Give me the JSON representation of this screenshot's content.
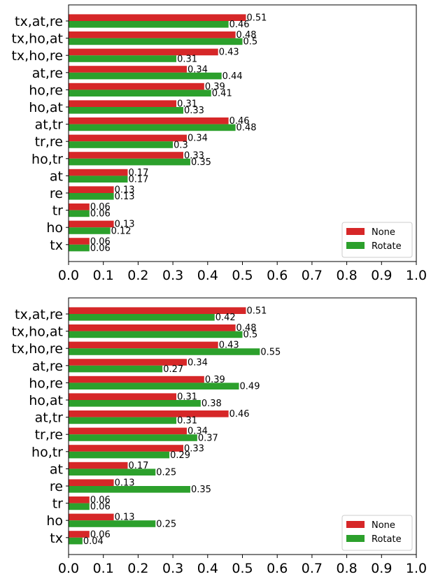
{
  "chart_data": [
    {
      "type": "bar",
      "orientation": "horizontal",
      "categories": [
        "tx,at,re",
        "tx,ho,at",
        "tx,ho,re",
        "at,re",
        "ho,re",
        "ho,at",
        "at,tr",
        "tr,re",
        "ho,tr",
        "at",
        "re",
        "tr",
        "ho",
        "tx"
      ],
      "series": [
        {
          "name": "None",
          "color": "#d62728",
          "values": [
            0.51,
            0.48,
            0.43,
            0.34,
            0.39,
            0.31,
            0.46,
            0.34,
            0.33,
            0.17,
            0.13,
            0.06,
            0.13,
            0.06
          ],
          "labels": [
            "0.51",
            "0.48",
            "0.43",
            "0.34",
            "0.39",
            "0.31",
            "0.46",
            "0.34",
            "0.33",
            "0.17",
            "0.13",
            "0.06",
            "0.13",
            "0.06"
          ]
        },
        {
          "name": "Rotate",
          "color": "#2ca02c",
          "values": [
            0.46,
            0.5,
            0.31,
            0.44,
            0.41,
            0.33,
            0.48,
            0.3,
            0.35,
            0.17,
            0.13,
            0.06,
            0.12,
            0.06
          ],
          "labels": [
            "0.46",
            "0.5",
            "0.31",
            "0.44",
            "0.41",
            "0.33",
            "0.48",
            "0.3",
            "0.35",
            "0.17",
            "0.13",
            "0.06",
            "0.12",
            "0.06"
          ]
        }
      ],
      "xlim": [
        0.0,
        1.0
      ],
      "xticks": [
        "0.0",
        "0.1",
        "0.2",
        "0.3",
        "0.4",
        "0.5",
        "0.6",
        "0.7",
        "0.8",
        "0.9",
        "1.0"
      ],
      "legend_position": "lower-right",
      "grid": false
    },
    {
      "type": "bar",
      "orientation": "horizontal",
      "categories": [
        "tx,at,re",
        "tx,ho,at",
        "tx,ho,re",
        "at,re",
        "ho,re",
        "ho,at",
        "at,tr",
        "tr,re",
        "ho,tr",
        "at",
        "re",
        "tr",
        "ho",
        "tx"
      ],
      "series": [
        {
          "name": "None",
          "color": "#d62728",
          "values": [
            0.51,
            0.48,
            0.43,
            0.34,
            0.39,
            0.31,
            0.46,
            0.34,
            0.33,
            0.17,
            0.13,
            0.06,
            0.13,
            0.06
          ],
          "labels": [
            "0.51",
            "0.48",
            "0.43",
            "0.34",
            "0.39",
            "0.31",
            "0.46",
            "0.34",
            "0.33",
            "0.17",
            "0.13",
            "0.06",
            "0.13",
            "0.06"
          ]
        },
        {
          "name": "Rotate",
          "color": "#2ca02c",
          "values": [
            0.42,
            0.5,
            0.55,
            0.27,
            0.49,
            0.38,
            0.31,
            0.37,
            0.29,
            0.25,
            0.35,
            0.06,
            0.25,
            0.04
          ],
          "labels": [
            "0.42",
            "0.5",
            "0.55",
            "0.27",
            "0.49",
            "0.38",
            "0.31",
            "0.37",
            "0.29",
            "0.25",
            "0.35",
            "0.06",
            "0.25",
            "0.04"
          ]
        }
      ],
      "xlim": [
        0.0,
        1.0
      ],
      "xticks": [
        "0.0",
        "0.1",
        "0.2",
        "0.3",
        "0.4",
        "0.5",
        "0.6",
        "0.7",
        "0.8",
        "0.9",
        "1.0"
      ],
      "legend_position": "lower-right",
      "grid": false
    }
  ]
}
